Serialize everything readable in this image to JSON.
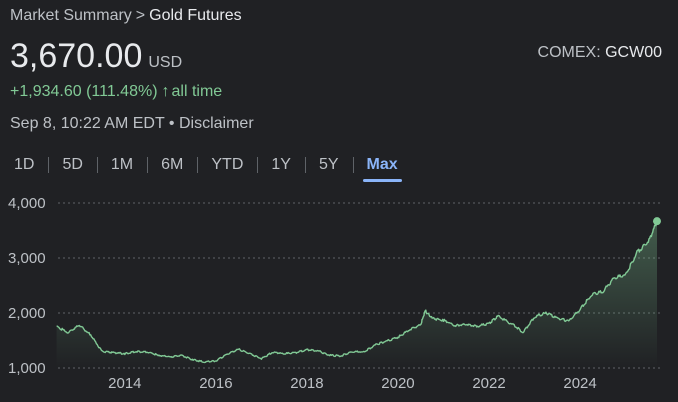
{
  "breadcrumb": {
    "parent": "Market Summary",
    "separator": ">",
    "current": "Gold Futures"
  },
  "quote": {
    "price": "3,670.00",
    "currency": "USD",
    "exchange_prefix": "COMEX:",
    "ticker": "GCW00",
    "change": "+1,934.60 (111.48%)",
    "change_arrow": "↑",
    "change_period": "all time",
    "timestamp": "Sep 8, 10:22 AM EDT",
    "dot": "•",
    "disclaimer": "Disclaimer"
  },
  "tabs": [
    {
      "label": "1D",
      "active": false
    },
    {
      "label": "5D",
      "active": false
    },
    {
      "label": "1M",
      "active": false
    },
    {
      "label": "6M",
      "active": false
    },
    {
      "label": "YTD",
      "active": false
    },
    {
      "label": "1Y",
      "active": false
    },
    {
      "label": "5Y",
      "active": false
    },
    {
      "label": "Max",
      "active": true
    }
  ],
  "colors": {
    "background": "#202124",
    "line": "#81c995",
    "grid": "#5f6368",
    "active_tab": "#8ab4f8"
  },
  "chart_data": {
    "type": "area",
    "x": [
      2012.5,
      2012.75,
      2013.0,
      2013.25,
      2013.5,
      2013.75,
      2014.0,
      2014.25,
      2014.5,
      2014.75,
      2015.0,
      2015.25,
      2015.5,
      2015.75,
      2016.0,
      2016.25,
      2016.5,
      2016.75,
      2017.0,
      2017.25,
      2017.5,
      2017.75,
      2018.0,
      2018.25,
      2018.5,
      2018.75,
      2019.0,
      2019.25,
      2019.5,
      2019.75,
      2020.0,
      2020.25,
      2020.5,
      2020.6,
      2020.75,
      2021.0,
      2021.25,
      2021.5,
      2021.75,
      2022.0,
      2022.2,
      2022.5,
      2022.75,
      2023.0,
      2023.25,
      2023.5,
      2023.75,
      2024.0,
      2024.25,
      2024.5,
      2024.75,
      2025.0,
      2025.25,
      2025.5,
      2025.69
    ],
    "values": [
      1760,
      1640,
      1780,
      1600,
      1300,
      1280,
      1260,
      1300,
      1290,
      1230,
      1200,
      1230,
      1150,
      1110,
      1130,
      1250,
      1340,
      1260,
      1170,
      1290,
      1260,
      1280,
      1330,
      1310,
      1230,
      1220,
      1300,
      1290,
      1420,
      1490,
      1560,
      1690,
      1790,
      2040,
      1900,
      1870,
      1770,
      1800,
      1760,
      1810,
      1940,
      1800,
      1650,
      1930,
      2000,
      1910,
      1850,
      2070,
      2330,
      2390,
      2640,
      2690,
      3100,
      3300,
      3670
    ],
    "title": "",
    "xlabel": "",
    "ylabel": "",
    "xlim": [
      2012.4,
      2025.8
    ],
    "ylim": [
      1000,
      4000
    ],
    "y_ticks": [
      1000,
      2000,
      3000,
      4000
    ],
    "y_tick_labels": [
      "1,000",
      "2,000",
      "3,000",
      "4,000"
    ],
    "x_ticks": [
      2014,
      2016,
      2018,
      2020,
      2022,
      2024
    ],
    "x_tick_labels": [
      "2014",
      "2016",
      "2018",
      "2020",
      "2022",
      "2024"
    ],
    "grid": true,
    "legend": "none"
  }
}
